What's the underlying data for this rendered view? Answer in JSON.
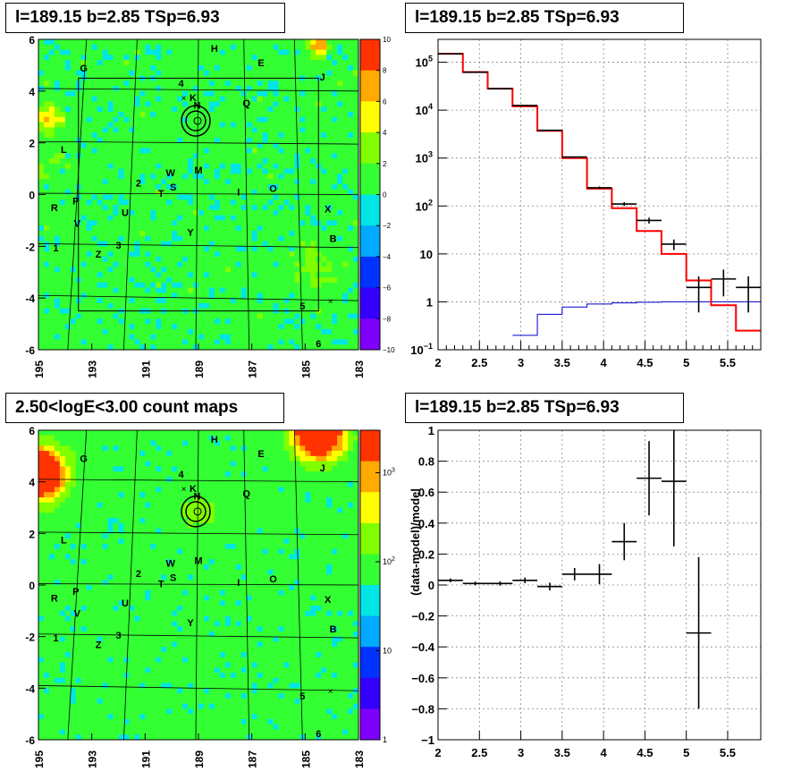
{
  "chart_data": [
    {
      "type": "heatmap",
      "title": "l=189.15 b=2.85 TSp=6.93",
      "x_ticks": [
        "195",
        "193",
        "191",
        "189",
        "187",
        "185",
        "183"
      ],
      "xlim": [
        195,
        183
      ],
      "y_ticks": [
        "-6",
        "-4",
        "-2",
        "0",
        "2",
        "4",
        "6"
      ],
      "ylim": [
        -6,
        6
      ],
      "colorbar_ticks": [
        "10",
        "8",
        "6",
        "4",
        "2",
        "0",
        "−2",
        "−4",
        "−6",
        "−8",
        "−10"
      ],
      "colorbar_range": [
        -10,
        10
      ],
      "colors": [
        "#7f00ff",
        "#3300ff",
        "#0033ff",
        "#00aaff",
        "#00e5e5",
        "#33ff33",
        "#7fff00",
        "#ffff00",
        "#ffaa00",
        "#ff3300"
      ],
      "source_labels": [
        {
          "t": "H",
          "l": 188.4,
          "b": 5.65
        },
        {
          "t": "G",
          "l": 193.3,
          "b": 4.9
        },
        {
          "t": "E",
          "l": 186.65,
          "b": 5.1
        },
        {
          "t": "J",
          "l": 184.35,
          "b": 4.55
        },
        {
          "t": "4",
          "l": 189.65,
          "b": 4.3
        },
        {
          "t": "K",
          "l": 189.2,
          "b": 3.75
        },
        {
          "t": "N",
          "l": 189.05,
          "b": 3.45
        },
        {
          "t": "Q",
          "l": 187.2,
          "b": 3.55
        },
        {
          "t": "L",
          "l": 194.05,
          "b": 1.75
        },
        {
          "t": "2",
          "l": 191.25,
          "b": 0.45
        },
        {
          "t": "W",
          "l": 190.05,
          "b": 0.85
        },
        {
          "t": "M",
          "l": 189.0,
          "b": 0.95
        },
        {
          "t": "T",
          "l": 190.4,
          "b": 0.05
        },
        {
          "t": "S",
          "l": 189.95,
          "b": 0.3
        },
        {
          "t": "I",
          "l": 187.5,
          "b": 0.1
        },
        {
          "t": "O",
          "l": 186.2,
          "b": 0.25
        },
        {
          "t": "R",
          "l": 194.4,
          "b": -0.5
        },
        {
          "t": "P",
          "l": 193.6,
          "b": -0.25
        },
        {
          "t": "U",
          "l": 191.75,
          "b": -0.7
        },
        {
          "t": "X",
          "l": 184.15,
          "b": -0.55
        },
        {
          "t": "V",
          "l": 193.55,
          "b": -1.1
        },
        {
          "t": "Y",
          "l": 189.3,
          "b": -1.45
        },
        {
          "t": "1",
          "l": 194.35,
          "b": -2.05
        },
        {
          "t": "3",
          "l": 192.0,
          "b": -1.95
        },
        {
          "t": "Z",
          "l": 192.75,
          "b": -2.3
        },
        {
          "t": "B",
          "l": 183.95,
          "b": -1.7
        },
        {
          "t": "5",
          "l": 185.1,
          "b": -4.3
        },
        {
          "t": "6",
          "l": 184.5,
          "b": -5.75
        }
      ]
    },
    {
      "type": "line",
      "title": "l=189.15 b=2.85 TSp=6.93",
      "xlim": [
        2.0,
        5.9
      ],
      "x_ticks": [
        "2",
        "2.5",
        "3",
        "3.5",
        "4",
        "4.5",
        "5",
        "5.5"
      ],
      "ylim": [
        0.1,
        300000
      ],
      "yscale": "log",
      "y_ticks": [
        {
          "m": "10",
          "e": "−1",
          "v": 0.1
        },
        {
          "m": "1",
          "e": "",
          "v": 1
        },
        {
          "m": "10",
          "e": "",
          "v": 10
        },
        {
          "m": "10",
          "e": "2",
          "v": 100
        },
        {
          "m": "10",
          "e": "3",
          "v": 1000
        },
        {
          "m": "10",
          "e": "4",
          "v": 10000
        },
        {
          "m": "10",
          "e": "5",
          "v": 100000
        }
      ],
      "edges": [
        2.0,
        2.3,
        2.6,
        2.9,
        3.2,
        3.5,
        3.8,
        4.1,
        4.4,
        4.7,
        5.0,
        5.3,
        5.6,
        5.9
      ],
      "data": [
        {
          "x": 2.15,
          "y": 150000,
          "lo": 149000,
          "hi": 151000
        },
        {
          "x": 2.45,
          "y": 62000,
          "lo": 61500,
          "hi": 62500
        },
        {
          "x": 2.75,
          "y": 28000,
          "lo": 27700,
          "hi": 28300
        },
        {
          "x": 3.05,
          "y": 12500,
          "lo": 12300,
          "hi": 12700
        },
        {
          "x": 3.35,
          "y": 3800,
          "lo": 3700,
          "hi": 3900
        },
        {
          "x": 3.65,
          "y": 1050,
          "lo": 1020,
          "hi": 1080
        },
        {
          "x": 3.95,
          "y": 240,
          "lo": 225,
          "hi": 255
        },
        {
          "x": 4.25,
          "y": 110,
          "lo": 100,
          "hi": 120
        },
        {
          "x": 4.55,
          "y": 50,
          "lo": 43,
          "hi": 57
        },
        {
          "x": 4.85,
          "y": 16,
          "lo": 12,
          "hi": 20
        },
        {
          "x": 5.15,
          "y": 2.0,
          "lo": 0.6,
          "hi": 3.4
        },
        {
          "x": 5.45,
          "y": 3.0,
          "lo": 1.3,
          "hi": 4.7
        },
        {
          "x": 5.75,
          "y": 2.0,
          "lo": 0.6,
          "hi": 3.4
        }
      ],
      "model_total": [
        150000,
        62000,
        28000,
        12000,
        3700,
        1000,
        230,
        90,
        30,
        10,
        2.8,
        0.85,
        0.25
      ],
      "model_source": [
        null,
        null,
        null,
        0.2,
        0.55,
        0.78,
        0.9,
        0.95,
        0.98,
        1.0,
        1.0,
        1.0,
        1.0
      ],
      "colors": {
        "data": "#000000",
        "total": "#ff0000",
        "source": "#0000cc"
      }
    },
    {
      "type": "heatmap",
      "title": "2.50<logE<3.00 count maps",
      "x_ticks": [
        "195",
        "193",
        "191",
        "189",
        "187",
        "185",
        "183"
      ],
      "xlim": [
        195,
        183
      ],
      "y_ticks": [
        "-6",
        "-4",
        "-2",
        "0",
        "2",
        "4",
        "6"
      ],
      "ylim": [
        -6,
        6
      ],
      "colorbar_scale": "log",
      "colorbar_ticks": [
        {
          "m": "1",
          "e": "",
          "v": 1
        },
        {
          "m": "10",
          "e": "",
          "v": 10
        },
        {
          "m": "10",
          "e": "2",
          "v": 100
        },
        {
          "m": "10",
          "e": "3",
          "v": 1000
        }
      ],
      "colorbar_range": [
        1,
        3000
      ],
      "colors": [
        "#7f00ff",
        "#3300ff",
        "#0033ff",
        "#00aaff",
        "#00e5e5",
        "#33ff33",
        "#7fff00",
        "#ffff00",
        "#ffaa00",
        "#ff3300"
      ],
      "source_labels": "same as map 1"
    },
    {
      "type": "scatter",
      "title": "l=189.15 b=2.85 TSp=6.93",
      "ylabel": "(data-model)/model",
      "xlim": [
        2.0,
        5.9
      ],
      "x_ticks": [
        "2",
        "2.5",
        "3",
        "3.5",
        "4",
        "4.5",
        "5",
        "5.5"
      ],
      "ylim": [
        -1.0,
        1.0
      ],
      "y_ticks": [
        "−1",
        "−0.8",
        "−0.6",
        "−0.4",
        "−0.2",
        "0",
        "0.2",
        "0.4",
        "0.6",
        "0.8",
        "1"
      ],
      "points": [
        {
          "x": 2.15,
          "y": 0.03,
          "err": 0.012
        },
        {
          "x": 2.45,
          "y": 0.01,
          "err": 0.012
        },
        {
          "x": 2.75,
          "y": 0.01,
          "err": 0.014
        },
        {
          "x": 3.05,
          "y": 0.03,
          "err": 0.018
        },
        {
          "x": 3.35,
          "y": -0.01,
          "err": 0.025
        },
        {
          "x": 3.65,
          "y": 0.07,
          "err": 0.04
        },
        {
          "x": 3.95,
          "y": 0.07,
          "err": 0.065
        },
        {
          "x": 4.25,
          "y": 0.28,
          "err": 0.12
        },
        {
          "x": 4.55,
          "y": 0.69,
          "err": 0.24
        },
        {
          "x": 4.85,
          "y": 0.67,
          "err": 0.42
        },
        {
          "x": 5.15,
          "y": -0.31,
          "err": 0.49
        }
      ],
      "half_width": 0.15
    }
  ]
}
